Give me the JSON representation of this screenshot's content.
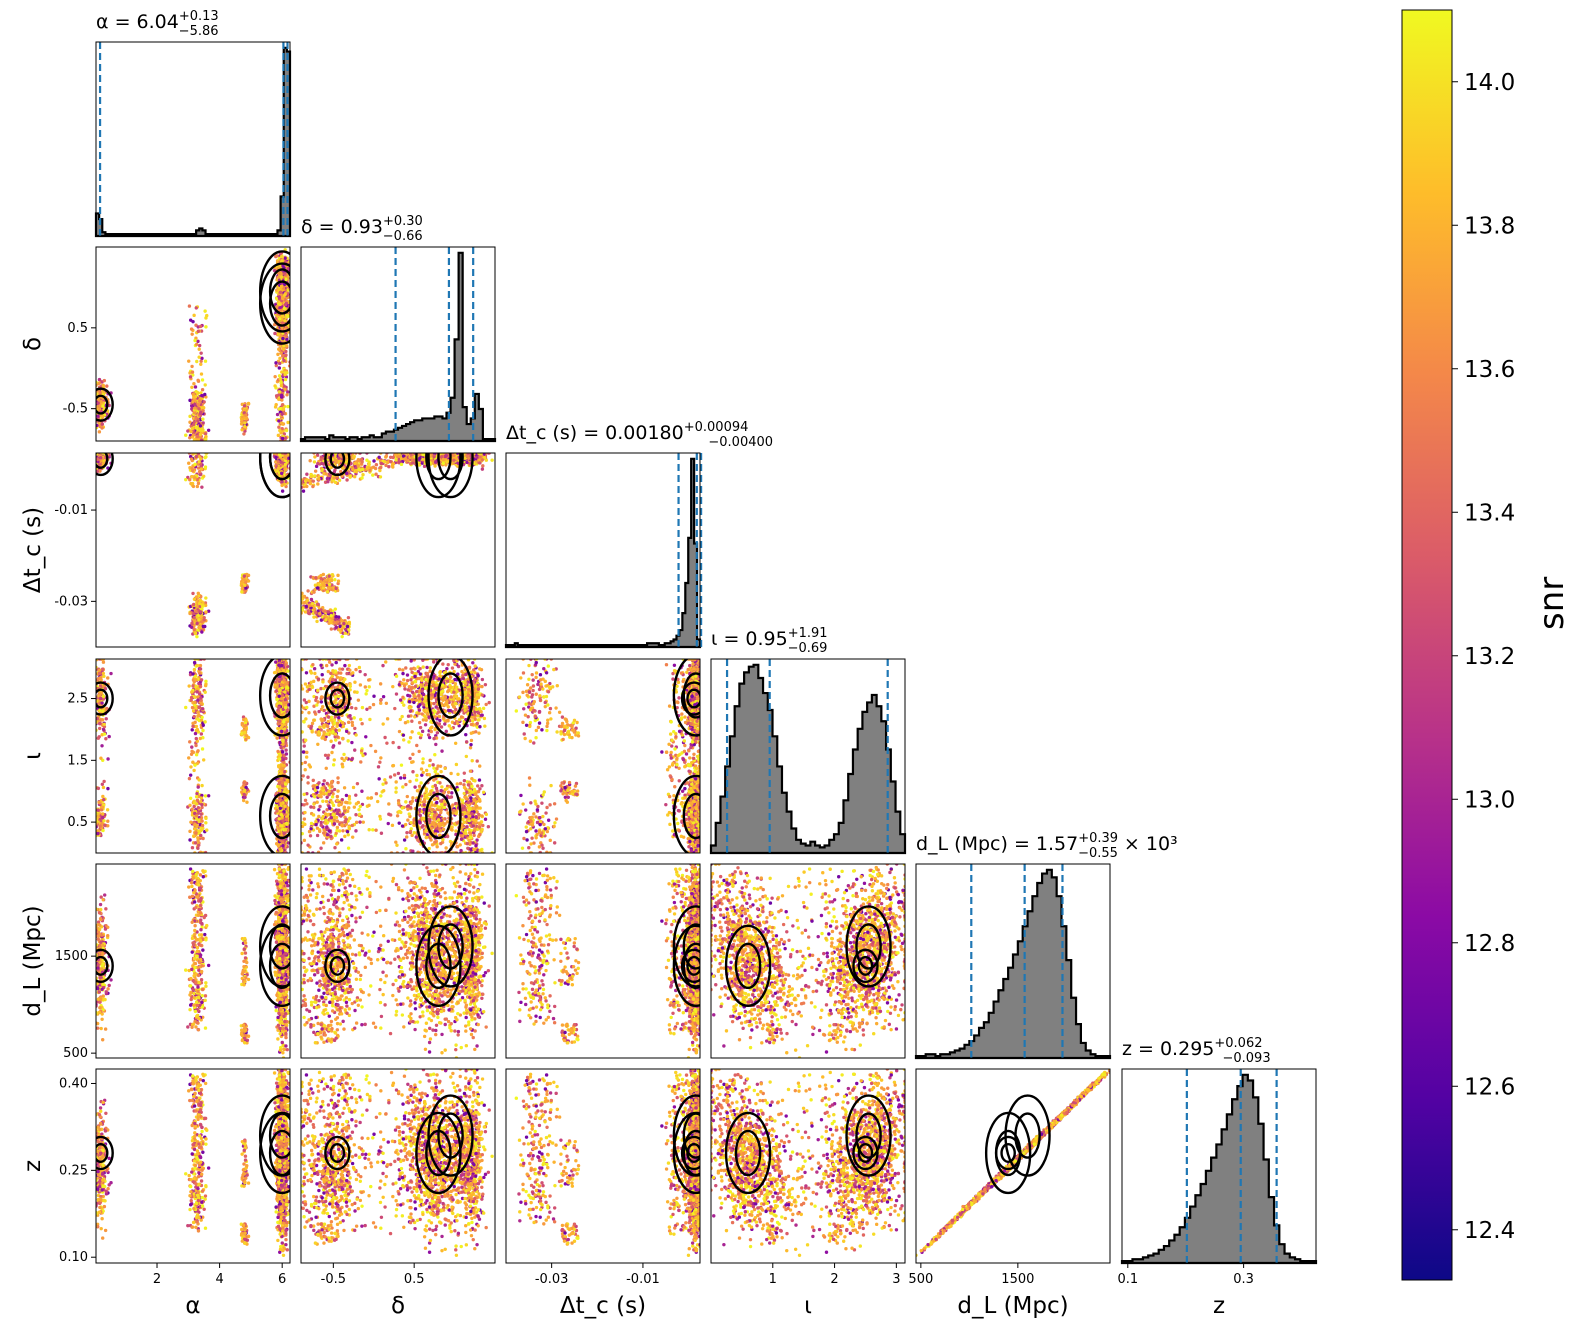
{
  "chart_data": {
    "type": "scatter",
    "parameters": [
      "α",
      "δ",
      "Δt_c (s)",
      "ι",
      "d_L (Mpc)",
      "z"
    ],
    "ranges": {
      "alpha": [
        0.05,
        6.25
      ],
      "delta": [
        -0.9,
        1.5
      ],
      "dtc": [
        -0.04,
        0.0025
      ],
      "iota": [
        0.0,
        3.14
      ],
      "dL": [
        450,
        2450
      ],
      "z": [
        0.09,
        0.425
      ]
    },
    "titles": [
      {
        "label": "α = 6.04",
        "up": "+0.13",
        "down": "−5.86",
        "suffix": ""
      },
      {
        "label": "δ = 0.93",
        "up": "+0.30",
        "down": "−0.66",
        "suffix": ""
      },
      {
        "label": "Δt_c (s) = 0.00180",
        "up": "+0.00094",
        "down": "−0.00400",
        "suffix": ""
      },
      {
        "label": "ι = 0.95",
        "up": "+1.91",
        "down": "−0.69",
        "suffix": ""
      },
      {
        "label": "d_L (Mpc) = 1.57",
        "up": "+0.39",
        "down": "−0.55",
        "suffix": "× 10³"
      },
      {
        "label": "z = 0.295",
        "up": "+0.062",
        "down": "−0.093",
        "suffix": ""
      }
    ],
    "xlabels": [
      "α",
      "δ",
      "Δt_c (s)",
      "ι",
      "d_L (Mpc)",
      "z"
    ],
    "ylabels": [
      "δ",
      "Δt_c (s)",
      "ι",
      "d_L (Mpc)",
      "z"
    ],
    "xticks": [
      {
        "values": [
          2,
          4,
          6
        ],
        "labels": [
          "2",
          "4",
          "6"
        ]
      },
      {
        "values": [
          -0.5,
          0.5
        ],
        "labels": [
          "-0.5",
          "0.5"
        ]
      },
      {
        "values": [
          -0.03,
          -0.01
        ],
        "labels": [
          "-0.03",
          "-0.01"
        ]
      },
      {
        "values": [
          1,
          2,
          3
        ],
        "labels": [
          "1",
          "2",
          "3"
        ]
      },
      {
        "values": [
          500,
          1500
        ],
        "labels": [
          "500",
          "1500"
        ]
      },
      {
        "values": [
          0.1,
          0.3
        ],
        "labels": [
          "0.1",
          "0.3"
        ]
      }
    ],
    "yticks": [
      {
        "values": [
          0.5,
          -0.5
        ],
        "labels": [
          "0.5",
          "-0.5"
        ]
      },
      {
        "values": [
          -0.01,
          -0.03
        ],
        "labels": [
          "-0.01",
          "-0.03"
        ]
      },
      {
        "values": [
          2.5,
          1.5,
          0.5
        ],
        "labels": [
          "2.5",
          "1.5",
          "0.5"
        ]
      },
      {
        "values": [
          1500,
          500
        ],
        "labels": [
          "1500",
          "500"
        ]
      },
      {
        "values": [
          0.4,
          0.25,
          0.1
        ],
        "labels": [
          "0.40",
          "0.25",
          "0.10"
        ]
      }
    ],
    "quantiles": {
      "alpha": [
        0.18,
        6.04,
        6.17
      ],
      "delta": [
        0.27,
        0.93,
        1.23
      ],
      "dtc": [
        -0.0022,
        0.0018,
        0.00274
      ],
      "iota": [
        0.26,
        0.95,
        2.86
      ],
      "dL": [
        1020,
        1570,
        1960
      ],
      "z": [
        0.202,
        0.295,
        0.357
      ]
    },
    "histograms": {
      "alpha": {
        "edges": [
          0.05,
          6.25
        ],
        "counts": [
          0.12,
          0.09,
          0.02,
          0.01,
          0.01,
          0.01,
          0.01,
          0.01,
          0.01,
          0.01,
          0.01,
          0.01,
          0.01,
          0.01,
          0.01,
          0.01,
          0.01,
          0.01,
          0.01,
          0.01,
          0.01,
          0.01,
          0.01,
          0.01,
          0.01,
          0.01,
          0.01,
          0.01,
          0.01,
          0.01,
          0.01,
          0.01,
          0.03,
          0.04,
          0.03,
          0.01,
          0.01,
          0.01,
          0.01,
          0.01,
          0.01,
          0.01,
          0.01,
          0.01,
          0.01,
          0.01,
          0.01,
          0.01,
          0.01,
          0.01,
          0.01,
          0.01,
          0.01,
          0.01,
          0.01,
          0.01,
          0.01,
          0.01,
          0.03,
          0.21,
          1.0,
          0.98
        ]
      },
      "delta": {
        "edges": [
          -0.9,
          1.5
        ],
        "counts": [
          0.01,
          0.02,
          0.02,
          0.02,
          0.02,
          0.02,
          0.01,
          0.03,
          0.02,
          0.02,
          0.02,
          0.01,
          0.02,
          0.02,
          0.01,
          0.02,
          0.02,
          0.03,
          0.02,
          0.02,
          0.04,
          0.05,
          0.05,
          0.06,
          0.07,
          0.08,
          0.09,
          0.1,
          0.11,
          0.11,
          0.12,
          0.12,
          0.12,
          0.13,
          0.13,
          0.12,
          0.15,
          0.23,
          0.54,
          1.0,
          0.18,
          0.09,
          0.12,
          0.25,
          0.17,
          0.01,
          0.01,
          0.01
        ]
      },
      "dtc": {
        "edges": [
          -0.04,
          0.0025
        ],
        "counts": [
          0.01,
          0.01,
          0.01,
          0.02,
          0.01,
          0.01,
          0.01,
          0.01,
          0.01,
          0.01,
          0.01,
          0.01,
          0.01,
          0.01,
          0.01,
          0.01,
          0.01,
          0.01,
          0.01,
          0.01,
          0.01,
          0.01,
          0.01,
          0.01,
          0.01,
          0.01,
          0.01,
          0.01,
          0.01,
          0.01,
          0.01,
          0.01,
          0.01,
          0.01,
          0.01,
          0.01,
          0.01,
          0.01,
          0.01,
          0.01,
          0.01,
          0.01,
          0.01,
          0.01,
          0.01,
          0.01,
          0.01,
          0.01,
          0.02,
          0.02,
          0.02,
          0.02,
          0.01,
          0.01,
          0.02,
          0.02,
          0.03,
          0.04,
          0.06,
          0.09,
          0.18,
          0.34,
          0.58,
          1.0,
          0.55,
          0.04
        ]
      },
      "iota": {
        "edges": [
          0.0,
          3.14
        ],
        "counts": [
          0.04,
          0.16,
          0.3,
          0.46,
          0.62,
          0.78,
          0.9,
          0.96,
          0.99,
          1.0,
          0.93,
          0.85,
          0.76,
          0.62,
          0.46,
          0.32,
          0.22,
          0.13,
          0.07,
          0.05,
          0.04,
          0.06,
          0.04,
          0.03,
          0.04,
          0.07,
          0.1,
          0.16,
          0.28,
          0.42,
          0.55,
          0.66,
          0.75,
          0.8,
          0.84,
          0.78,
          0.7,
          0.55,
          0.38,
          0.22,
          0.1
        ]
      },
      "dL": {
        "edges": [
          450,
          2450
        ],
        "counts": [
          0.01,
          0.01,
          0.02,
          0.02,
          0.01,
          0.02,
          0.02,
          0.03,
          0.04,
          0.05,
          0.07,
          0.09,
          0.12,
          0.16,
          0.19,
          0.24,
          0.3,
          0.36,
          0.42,
          0.48,
          0.55,
          0.62,
          0.7,
          0.78,
          0.86,
          0.93,
          0.98,
          1.0,
          0.96,
          0.86,
          0.7,
          0.52,
          0.32,
          0.18,
          0.08,
          0.04,
          0.02,
          0.01,
          0.01,
          0.01
        ]
      },
      "z": {
        "edges": [
          0.09,
          0.425
        ],
        "counts": [
          0.01,
          0.01,
          0.02,
          0.02,
          0.03,
          0.04,
          0.05,
          0.07,
          0.09,
          0.12,
          0.15,
          0.19,
          0.24,
          0.3,
          0.36,
          0.42,
          0.49,
          0.56,
          0.63,
          0.71,
          0.79,
          0.87,
          0.94,
          1.0,
          0.97,
          0.88,
          0.74,
          0.55,
          0.35,
          0.2,
          0.1,
          0.05,
          0.03,
          0.02,
          0.01,
          0.01,
          0.01
        ]
      }
    },
    "colorbar": {
      "label": "snr",
      "range": [
        12.33,
        14.1
      ],
      "ticks": [
        12.4,
        12.6,
        12.8,
        13.0,
        13.2,
        13.4,
        13.6,
        13.8,
        14.0
      ],
      "tick_labels": [
        "12.4",
        "12.6",
        "12.8",
        "13.0",
        "13.2",
        "13.4",
        "13.6",
        "13.8",
        "14.0"
      ],
      "colormap": "plasma",
      "colors": [
        "#0d0887",
        "#5302a3",
        "#8b0aa5",
        "#b83289",
        "#db5c68",
        "#f48849",
        "#febd2a",
        "#f0f921"
      ]
    },
    "contour_levels": [
      "50%",
      "90%"
    ],
    "contour_color": "#000000",
    "hist_fill": "#808080",
    "quantile_line_color": "#1f77b4"
  }
}
